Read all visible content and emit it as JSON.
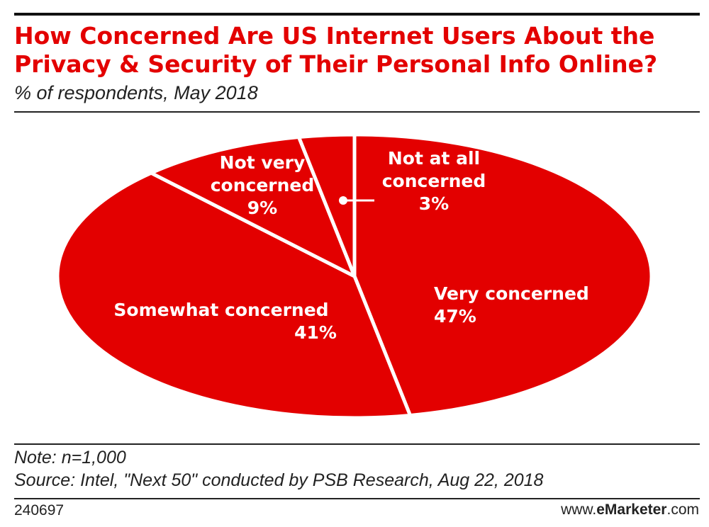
{
  "chart_data": {
    "type": "pie",
    "title_lines": [
      "How Concerned Are US Internet Users About the",
      "Privacy & Security of Their Personal Info Online?"
    ],
    "subtitle": "% of respondents, May 2018",
    "slices": [
      {
        "name": "Very concerned",
        "value": 47,
        "label_lines": [
          "Very concerned"
        ],
        "value_label": "47%"
      },
      {
        "name": "Somewhat concerned",
        "value": 41,
        "label_lines": [
          "Somewhat concerned"
        ],
        "value_label": "41%"
      },
      {
        "name": "Not very concerned",
        "value": 9,
        "label_lines": [
          "Not very",
          "concerned"
        ],
        "value_label": "9%"
      },
      {
        "name": "Not at all concerned",
        "value": 3,
        "label_lines": [
          "Not at all",
          "concerned"
        ],
        "value_label": "3%"
      }
    ],
    "colors": {
      "slice": "#e30000",
      "divider": "#ffffff"
    }
  },
  "footer": {
    "note": "Note: n=1,000",
    "source": "Source: Intel, \"Next 50\" conducted by PSB Research, Aug 22, 2018",
    "chart_id": "240697",
    "brand_prefix": "www.",
    "brand_bold": "eMarketer",
    "brand_suffix": ".com"
  }
}
